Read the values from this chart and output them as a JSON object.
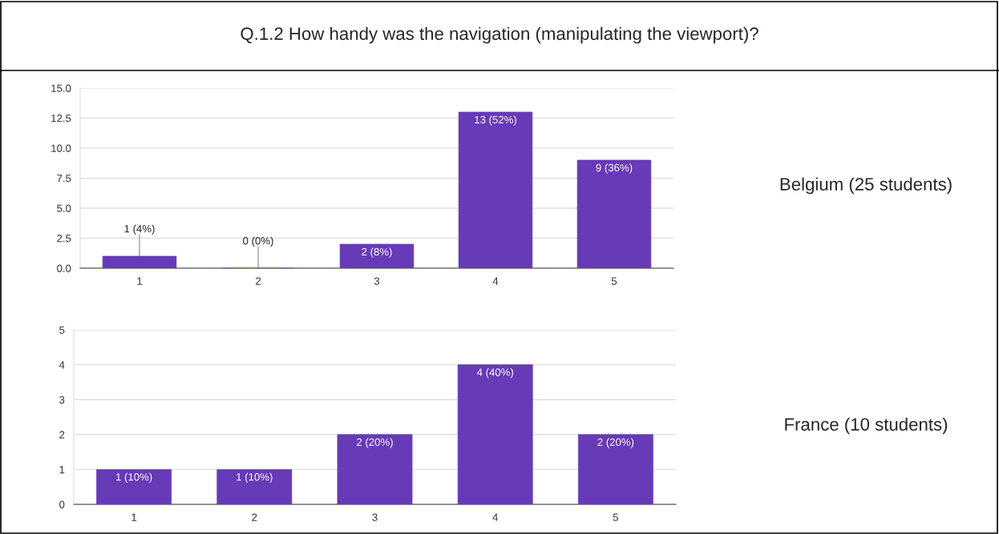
{
  "chart_data": [
    {
      "type": "bar",
      "title": "Q.1.2 How handy was the navigation (manipulating the viewport)?",
      "categories": [
        "1",
        "2",
        "3",
        "4",
        "5"
      ],
      "series": [
        {
          "color": "#673ab7",
          "values": [
            1,
            0,
            2,
            13,
            9
          ]
        }
      ],
      "value_labels": [
        "1 (4%)",
        "0 (0%)",
        "2 (8%)",
        "13 (52%)",
        "9 (36%)"
      ],
      "ylim": [
        0,
        15
      ],
      "yticks": [
        {
          "value": 0,
          "label": "0.0"
        },
        {
          "value": 2.5,
          "label": "2.5"
        },
        {
          "value": 5,
          "label": "5.0"
        },
        {
          "value": 7.5,
          "label": "7.5"
        },
        {
          "value": 10,
          "label": "10.0"
        },
        {
          "value": 12.5,
          "label": "12.5"
        },
        {
          "value": 15,
          "label": "15.0"
        }
      ],
      "grid": "y",
      "annotations": [
        "Belgium (25 students)"
      ]
    },
    {
      "type": "bar",
      "categories": [
        "1",
        "2",
        "3",
        "4",
        "5"
      ],
      "series": [
        {
          "color": "#673ab7",
          "values": [
            1,
            1,
            2,
            4,
            2
          ]
        }
      ],
      "value_labels": [
        "1 (10%)",
        "1 (10%)",
        "2 (20%)",
        "4 (40%)",
        "2 (20%)"
      ],
      "ylim": [
        0,
        5
      ],
      "yticks": [
        0,
        1,
        2,
        3,
        4,
        5
      ],
      "grid": "y",
      "annotations": [
        "France (10 students)"
      ]
    }
  ]
}
